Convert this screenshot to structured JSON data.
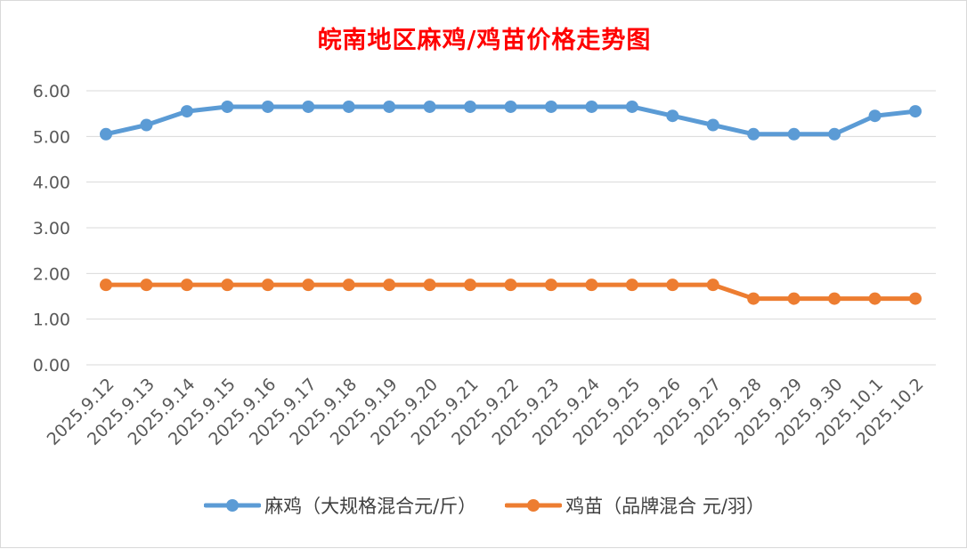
{
  "chart_data": {
    "type": "line",
    "title": "皖南地区麻鸡/鸡苗价格走势图",
    "xlabel": "",
    "ylabel": "",
    "categories": [
      "2025.9.12",
      "2025.9.13",
      "2025.9.14",
      "2025.9.15",
      "2025.9.16",
      "2025.9.17",
      "2025.9.18",
      "2025.9.19",
      "2025.9.20",
      "2025.9.21",
      "2025.9.22",
      "2025.9.23",
      "2025.9.24",
      "2025.9.25",
      "2025.9.26",
      "2025.9.27",
      "2025.9.28",
      "2025.9.29",
      "2025.9.30",
      "2025.10.1",
      "2025.10.2"
    ],
    "ylim": [
      0,
      6
    ],
    "yticks": [
      "0.00",
      "1.00",
      "2.00",
      "3.00",
      "4.00",
      "5.00",
      "6.00"
    ],
    "grid": true,
    "legend_position": "bottom",
    "series": [
      {
        "name": "麻鸡（大规格混合元/斤）",
        "color": "#5b9bd5",
        "values": [
          5.05,
          5.25,
          5.55,
          5.65,
          5.65,
          5.65,
          5.65,
          5.65,
          5.65,
          5.65,
          5.65,
          5.65,
          5.65,
          5.65,
          5.45,
          5.25,
          5.05,
          5.05,
          5.05,
          5.45,
          5.55
        ]
      },
      {
        "name": "鸡苗（品牌混合 元/羽）",
        "color": "#ed7d31",
        "values": [
          1.75,
          1.75,
          1.75,
          1.75,
          1.75,
          1.75,
          1.75,
          1.75,
          1.75,
          1.75,
          1.75,
          1.75,
          1.75,
          1.75,
          1.75,
          1.75,
          1.45,
          1.45,
          1.45,
          1.45,
          1.45
        ]
      }
    ]
  }
}
